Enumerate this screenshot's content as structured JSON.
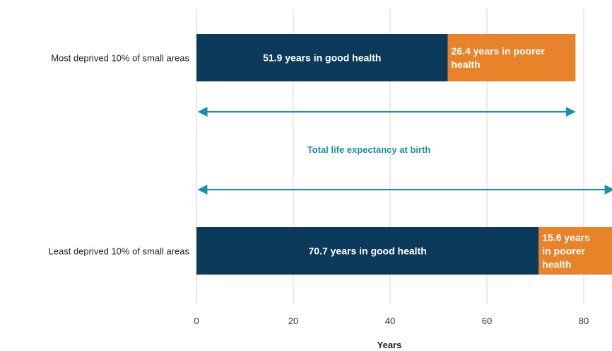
{
  "chart_data": {
    "type": "bar",
    "orientation": "horizontal",
    "stacked": true,
    "categories": [
      "Most deprived 10% of small areas",
      "Least deprived 10% of small areas"
    ],
    "series": [
      {
        "key": "good",
        "values": [
          51.9,
          70.7
        ],
        "color": "#0b3a5b"
      },
      {
        "key": "poorer",
        "values": [
          26.4,
          15.6
        ],
        "color": "#e8832a"
      }
    ],
    "data_labels": [
      [
        "51.9 years in good health",
        "26.4 years in poorer health"
      ],
      [
        "70.7 years in good health",
        "15.6 years in poorer health"
      ]
    ],
    "annotation": {
      "text": "Total life expectancy at birth",
      "color": "#1a8fb0",
      "spans": [
        78.3,
        86.3
      ]
    },
    "xlabel": "Years",
    "ylabel": "",
    "xlim": [
      0,
      86.3
    ],
    "xticks": [
      0,
      20,
      40,
      60,
      80
    ],
    "grid": true
  }
}
